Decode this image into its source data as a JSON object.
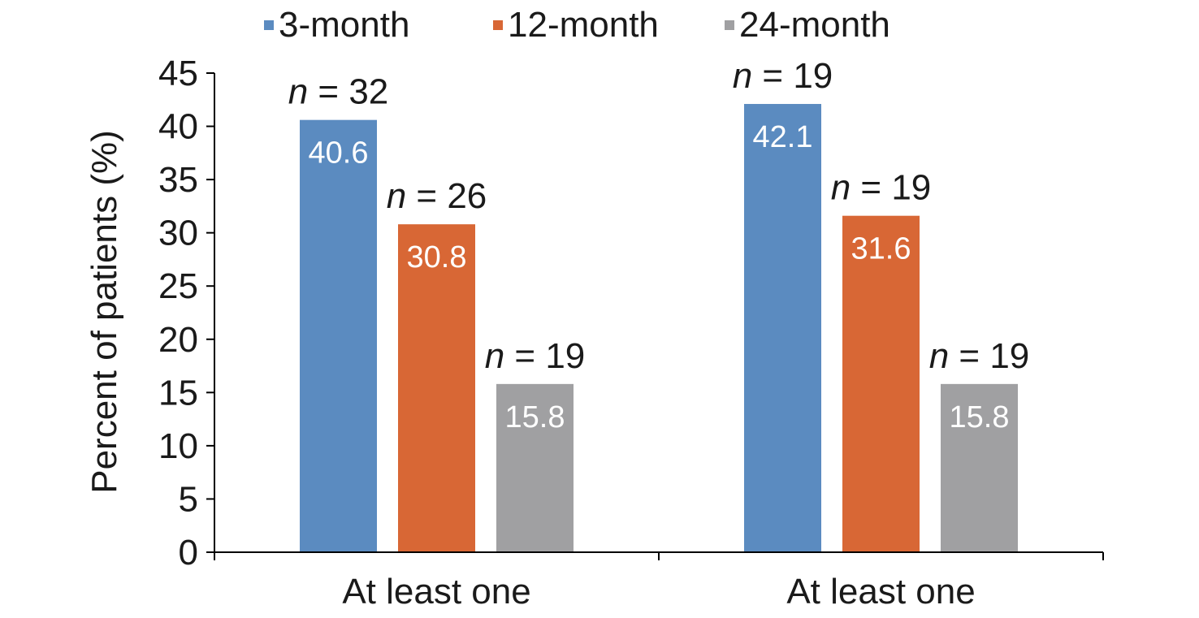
{
  "chart_data": {
    "type": "bar",
    "title": "",
    "xlabel": "",
    "ylabel": "Percent of patients (%)",
    "ylim": [
      0,
      45
    ],
    "yticks": [
      0,
      5,
      10,
      15,
      20,
      25,
      30,
      35,
      40,
      45
    ],
    "grid": false,
    "legend_position": "top",
    "categories": [
      "At least one",
      "At least one"
    ],
    "series": [
      {
        "name": "3-month",
        "color": "#5b8bc0",
        "values": [
          40.6,
          42.1
        ],
        "value_labels": [
          "40.6",
          "42.1"
        ],
        "n_labels": [
          "n = 32",
          "n = 19"
        ]
      },
      {
        "name": "12-month",
        "color": "#d86735",
        "values": [
          30.8,
          31.6
        ],
        "value_labels": [
          "30.8",
          "31.6"
        ],
        "n_labels": [
          "n = 26",
          "n = 19"
        ]
      },
      {
        "name": "24-month",
        "color": "#a0a0a2",
        "values": [
          15.8,
          15.8
        ],
        "value_labels": [
          "15.8",
          "15.8"
        ],
        "n_labels": [
          "n = 19",
          "n = 19"
        ]
      }
    ]
  }
}
